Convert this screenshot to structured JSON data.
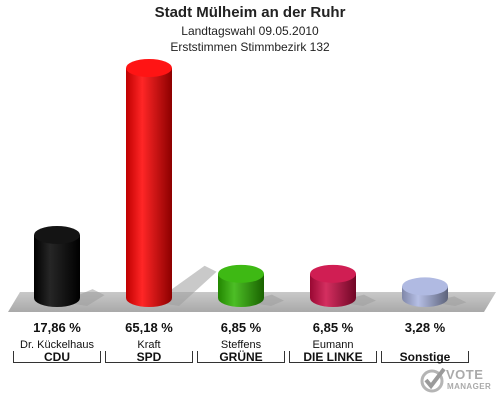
{
  "chart_data": {
    "type": "bar",
    "title": "Stadt Mülheim an der Ruhr",
    "subtitle_1": "Landtagswahl 09.05.2010",
    "subtitle_2": "Erststimmen Stimmbezirk 132",
    "categories": [
      "CDU",
      "SPD",
      "GRÜNE",
      "DIE LINKE",
      "Sonstige"
    ],
    "candidates": [
      "Dr. Kückelhaus",
      "Kraft",
      "Steffens",
      "Eumann",
      ""
    ],
    "values": [
      17.86,
      65.18,
      6.85,
      6.85,
      3.28
    ],
    "value_labels": [
      "17,86 %",
      "65,18 %",
      "6,85 %",
      "6,85 %",
      "3,28 %"
    ],
    "colors": [
      "#000000",
      "#ff0000",
      "#2db300",
      "#cc0a44",
      "#a9b4e0"
    ],
    "ylim": [
      0,
      65.18
    ]
  },
  "logo": {
    "line1": "VOTE",
    "line2": "MANAGER"
  }
}
